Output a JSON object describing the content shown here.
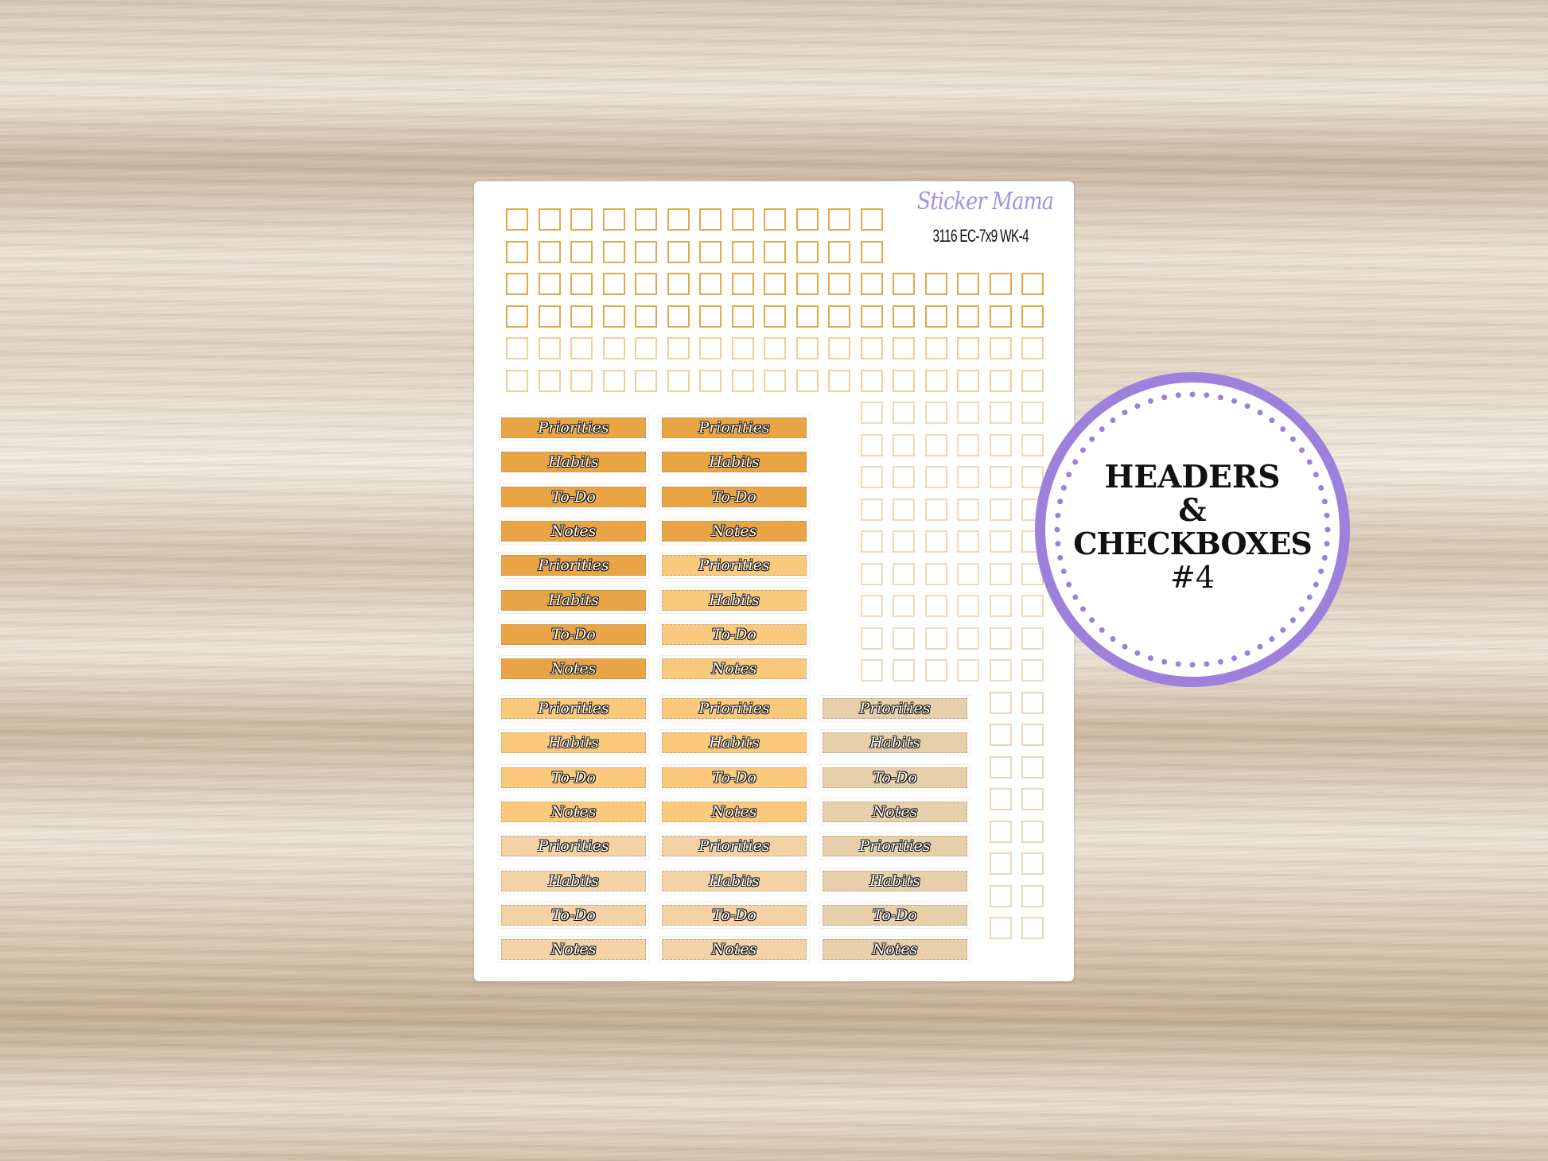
{
  "brand": {
    "logo_text": "Sticker Mama",
    "product_code": "3116 EC-7x9 WK-4"
  },
  "badge": {
    "line1": "HEADERS",
    "line2": "&",
    "line3": "CHECKBOXES",
    "line4": "#4",
    "ring_color": "#9c80dc"
  },
  "checkbox_rows": [
    {
      "start_col": 0,
      "count": 12,
      "color": "#e6a748"
    },
    {
      "start_col": 0,
      "count": 12,
      "color": "#e6a748"
    },
    {
      "start_col": 0,
      "count": 17,
      "color": "#e6a748"
    },
    {
      "start_col": 0,
      "count": 17,
      "color": "#e6a748"
    },
    {
      "start_col": 0,
      "count": 17,
      "color": "#f6cd92"
    },
    {
      "start_col": 0,
      "count": 17,
      "color": "#f6cd92"
    },
    {
      "start_col": 11,
      "count": 6,
      "color": "#f3d9b2"
    },
    {
      "start_col": 11,
      "count": 6,
      "color": "#f3d9b2"
    },
    {
      "start_col": 11,
      "count": 6,
      "color": "#f3d9b2"
    },
    {
      "start_col": 11,
      "count": 6,
      "color": "#f3d9b2"
    },
    {
      "start_col": 11,
      "count": 6,
      "color": "#f3d9b2"
    },
    {
      "start_col": 11,
      "count": 6,
      "color": "#f3d9b2"
    },
    {
      "start_col": 11,
      "count": 6,
      "color": "#f3d9b2"
    },
    {
      "start_col": 11,
      "count": 6,
      "color": "#f3d9b2"
    },
    {
      "start_col": 11,
      "count": 6,
      "color": "#f3d9b2"
    },
    {
      "start_col": 15,
      "count": 2,
      "color": "#ead6ba"
    },
    {
      "start_col": 15,
      "count": 2,
      "color": "#ead6ba"
    },
    {
      "start_col": 15,
      "count": 2,
      "color": "#ead6ba"
    },
    {
      "start_col": 15,
      "count": 2,
      "color": "#ead6ba"
    },
    {
      "start_col": 15,
      "count": 2,
      "color": "#ead6ba"
    },
    {
      "start_col": 15,
      "count": 2,
      "color": "#ead6ba"
    },
    {
      "start_col": 15,
      "count": 2,
      "color": "#ead6ba"
    },
    {
      "start_col": 15,
      "count": 2,
      "color": "#ead6ba"
    }
  ],
  "header_labels": [
    "Priorities",
    "Habits",
    "To-Do",
    "Notes"
  ],
  "header_blocks": [
    {
      "columns": [
        {
          "colors": [
            "#e8a445",
            "#e8a445",
            "#e8a445",
            "#e8a445",
            "#e8a445",
            "#e8a445",
            "#e8a445",
            "#e8a445"
          ]
        },
        {
          "colors": [
            "#e8a445",
            "#e8a445",
            "#e8a445",
            "#e8a445",
            "#f9c97e",
            "#f9c97e",
            "#f9c97e",
            "#f9c97e"
          ]
        }
      ]
    },
    {
      "columns": [
        {
          "colors": [
            "#fbc97c",
            "#fbc97c",
            "#fbc97c",
            "#fbc97c",
            "#f3d3a6",
            "#f3d3a6",
            "#f3d3a6",
            "#f3d3a6"
          ]
        },
        {
          "colors": [
            "#fbc97c",
            "#fbc97c",
            "#fbc97c",
            "#fbc97c",
            "#f3d3a6",
            "#f3d3a6",
            "#f3d3a6",
            "#f3d3a6"
          ]
        },
        {
          "colors": [
            "#e6cfaa",
            "#e6cfaa",
            "#e6cfaa",
            "#e6cfaa",
            "#e6cfaa",
            "#e6cfaa",
            "#e6cfaa",
            "#e6cfaa"
          ]
        }
      ]
    }
  ]
}
